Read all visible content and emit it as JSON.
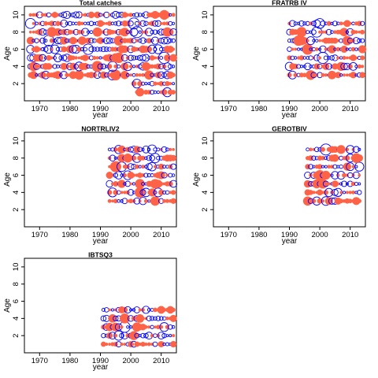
{
  "colors": {
    "positive": "#ff6347",
    "negative": "#0000ff",
    "axis": "#000000"
  },
  "chart_data": [
    {
      "type": "scatter",
      "subtype": "bubble",
      "title": "Total catches",
      "xlabel": "year",
      "ylabel": "Age",
      "xlim": [
        1965,
        2015
      ],
      "ylim": [
        0,
        11
      ],
      "xticks": [
        1970,
        1980,
        1990,
        2000,
        2010
      ],
      "yticks": [
        2,
        4,
        6,
        8,
        10
      ],
      "years": [
        1967,
        2014
      ],
      "ages": [
        1,
        10
      ],
      "age_years": {
        "1": [
          2002,
          2014
        ],
        "2": [
          2001,
          2014
        ]
      },
      "seed": 11
    },
    {
      "type": "scatter",
      "subtype": "bubble",
      "title": "FRATRB IV",
      "xlabel": "year",
      "ylabel": "Age",
      "xlim": [
        1965,
        2015
      ],
      "ylim": [
        0,
        11
      ],
      "xticks": [
        1970,
        1980,
        1990,
        2000,
        2010
      ],
      "yticks": [
        2,
        4,
        6,
        8,
        10
      ],
      "years": [
        1990,
        2014
      ],
      "ages": [
        3,
        9
      ],
      "age_years": {},
      "seed": 23
    },
    {
      "type": "scatter",
      "subtype": "bubble",
      "title": "NORTRLIV2",
      "xlabel": "year",
      "ylabel": "Age",
      "xlim": [
        1965,
        2015
      ],
      "ylim": [
        0,
        11
      ],
      "xticks": [
        1970,
        1980,
        1990,
        2000,
        2010
      ],
      "yticks": [
        2,
        4,
        6,
        8,
        10
      ],
      "years": [
        1993,
        2014
      ],
      "ages": [
        3,
        9
      ],
      "age_years": {},
      "seed": 37
    },
    {
      "type": "scatter",
      "subtype": "bubble",
      "title": "GEROTBIV",
      "xlabel": "year",
      "ylabel": "Age",
      "xlim": [
        1965,
        2015
      ],
      "ylim": [
        0,
        11
      ],
      "xticks": [
        1970,
        1980,
        1990,
        2000,
        2010
      ],
      "yticks": [
        2,
        4,
        6,
        8,
        10
      ],
      "years": [
        1996,
        2013
      ],
      "ages": [
        3,
        9
      ],
      "age_years": {},
      "seed": 51
    },
    {
      "type": "scatter",
      "subtype": "bubble",
      "title": "IBTSQ3",
      "xlabel": "year",
      "ylabel": "Age",
      "xlim": [
        1965,
        2015
      ],
      "ylim": [
        0,
        11
      ],
      "xticks": [
        1970,
        1980,
        1990,
        2000,
        2010
      ],
      "yticks": [
        2,
        4,
        6,
        8,
        10
      ],
      "years": [
        1991,
        2014
      ],
      "ages": [
        1,
        5
      ],
      "age_years": {},
      "seed": 67
    }
  ]
}
